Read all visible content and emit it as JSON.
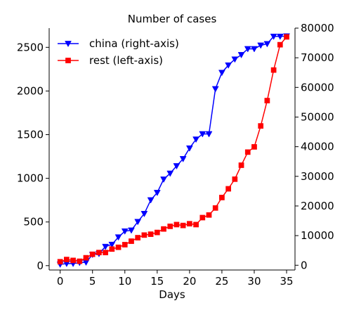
{
  "chart_data": {
    "type": "line",
    "title": "Number of cases",
    "xlabel": "Days",
    "ylabel_left": "",
    "ylabel_right": "",
    "xlim": [
      -1.7,
      36.3
    ],
    "ylim_left": [
      -50,
      2720
    ],
    "ylim_right": [
      -1600,
      80000
    ],
    "x_ticks": [
      0,
      5,
      10,
      15,
      20,
      25,
      30,
      35
    ],
    "y_left_ticks": [
      0,
      500,
      1000,
      1500,
      2000,
      2500
    ],
    "y_right_ticks": [
      0,
      10000,
      20000,
      30000,
      40000,
      50000,
      60000,
      70000,
      80000
    ],
    "legend_position": "top-left",
    "x": [
      0,
      1,
      2,
      3,
      4,
      5,
      6,
      7,
      8,
      9,
      10,
      11,
      12,
      13,
      14,
      15,
      16,
      17,
      18,
      19,
      20,
      21,
      22,
      23,
      24,
      25,
      26,
      27,
      28,
      29,
      30,
      31,
      32,
      33,
      34,
      35
    ],
    "series": [
      {
        "name": "china (right-axis)",
        "axis": "right",
        "color": "#0000ff",
        "marker": "triangle-down",
        "values": [
          300,
          560,
          560,
          890,
          1000,
          3600,
          3900,
          6300,
          7000,
          9500,
          11500,
          11800,
          14700,
          17400,
          22000,
          24500,
          29000,
          31000,
          33500,
          35900,
          39500,
          42500,
          44300,
          44300,
          59500,
          65000,
          67500,
          69500,
          71000,
          73000,
          73000,
          74200,
          74700,
          77200,
          77200,
          77300
        ]
      },
      {
        "name": "rest (left-axis)",
        "axis": "left",
        "color": "#ff0000",
        "marker": "square",
        "values": [
          45,
          70,
          60,
          50,
          90,
          130,
          150,
          150,
          190,
          210,
          240,
          280,
          320,
          350,
          360,
          380,
          420,
          450,
          470,
          460,
          480,
          470,
          550,
          580,
          660,
          780,
          880,
          990,
          1150,
          1300,
          1360,
          1600,
          1890,
          2240,
          2530,
          2620
        ]
      }
    ]
  }
}
